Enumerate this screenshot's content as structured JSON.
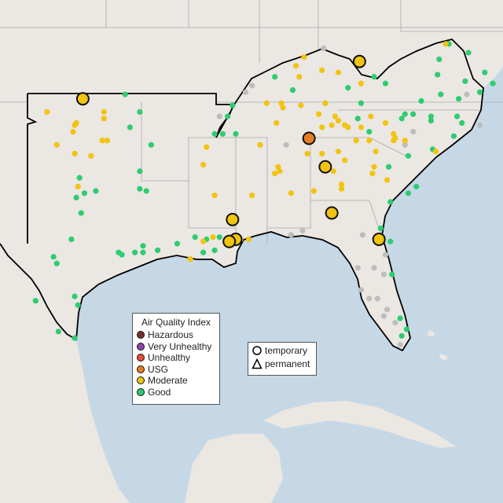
{
  "legend": {
    "title": "Air Quality Index",
    "categories": [
      {
        "label": "Hazardous",
        "color": "#7e2d2d"
      },
      {
        "label": "Very Unhealthy",
        "color": "#8e44ad"
      },
      {
        "label": "Unhealthy",
        "color": "#e74c3c"
      },
      {
        "label": "USG",
        "color": "#e67e22"
      },
      {
        "label": "Moderate",
        "color": "#f1c40f"
      },
      {
        "label": "Good",
        "color": "#2ecc71"
      }
    ],
    "no_data_color": "#bdbdbd",
    "monitor_types": [
      {
        "label": "temporary",
        "icon": "circle-icon"
      },
      {
        "label": "permanent",
        "icon": "triangle-icon"
      }
    ]
  },
  "colors": {
    "sea": "#c6d8e6",
    "land": "#ebe7e3",
    "border": "#000000",
    "state_lines": "#a9a9a9"
  },
  "monitors": {
    "temporary": [
      {
        "lon": -99.6,
        "lat": 36.8,
        "aqi": "Moderate"
      },
      {
        "lon": -82.6,
        "lat": 38.5,
        "aqi": "Moderate"
      },
      {
        "lon": -85.7,
        "lat": 35.0,
        "aqi": "USG"
      },
      {
        "lon": -84.7,
        "lat": 33.7,
        "aqi": "Moderate"
      },
      {
        "lon": -84.3,
        "lat": 31.6,
        "aqi": "Moderate"
      },
      {
        "lon": -90.4,
        "lat": 31.3,
        "aqi": "Moderate"
      },
      {
        "lon": -90.2,
        "lat": 30.4,
        "aqi": "Moderate"
      },
      {
        "lon": -90.6,
        "lat": 30.3,
        "aqi": "Moderate"
      },
      {
        "lon": -81.4,
        "lat": 30.4,
        "aqi": "Moderate"
      }
    ],
    "permanent_good": [
      [
        -97.0,
        37.0
      ],
      [
        -96.1,
        36.2
      ],
      [
        -96.7,
        35.5
      ],
      [
        -95.4,
        34.7
      ],
      [
        -96.1,
        33.5
      ],
      [
        -99.8,
        33.2
      ],
      [
        -98.8,
        32.6
      ],
      [
        -99.5,
        32.5
      ],
      [
        -100.0,
        32.3
      ],
      [
        -96.1,
        32.7
      ],
      [
        -95.7,
        32.6
      ],
      [
        -99.7,
        31.6
      ],
      [
        -100.3,
        30.4
      ],
      [
        -101.4,
        29.6
      ],
      [
        -101.2,
        29.3
      ],
      [
        -97.4,
        29.8
      ],
      [
        -97.2,
        29.7
      ],
      [
        -96.4,
        29.8
      ],
      [
        -95.9,
        30.1
      ],
      [
        -95.9,
        29.8
      ],
      [
        -95.0,
        29.9
      ],
      [
        -93.8,
        30.2
      ],
      [
        -92.7,
        30.5
      ],
      [
        -92.2,
        29.8
      ],
      [
        -91.5,
        29.9
      ],
      [
        -92.0,
        30.4
      ],
      [
        -91.2,
        30.5
      ],
      [
        -102.5,
        27.6
      ],
      [
        -100.1,
        27.8
      ],
      [
        -99.9,
        27.4
      ],
      [
        -101.1,
        26.2
      ],
      [
        -100.1,
        25.9
      ],
      [
        -91.5,
        35.2
      ],
      [
        -91.0,
        35.2
      ],
      [
        -90.7,
        36.0
      ],
      [
        -90.4,
        36.5
      ],
      [
        -90.2,
        35.2
      ],
      [
        -87.8,
        37.8
      ],
      [
        -86.7,
        37.2
      ],
      [
        -84.7,
        36.6
      ],
      [
        -82.5,
        36.6
      ],
      [
        -83.3,
        37.3
      ],
      [
        -81.7,
        37.8
      ],
      [
        -81.0,
        37.5
      ],
      [
        -79.8,
        36.1
      ],
      [
        -79.3,
        36.1
      ],
      [
        -80.0,
        35.9
      ],
      [
        -78.2,
        36.0
      ],
      [
        -78.2,
        35.8
      ],
      [
        -76.6,
        36.0
      ],
      [
        -76.3,
        35.7
      ],
      [
        -76.5,
        36.8
      ],
      [
        -77.6,
        37.0
      ],
      [
        -77.8,
        37.9
      ],
      [
        -77.7,
        38.6
      ],
      [
        -76.1,
        37.6
      ],
      [
        -75.2,
        37.1
      ],
      [
        -74.9,
        38.0
      ],
      [
        -75.9,
        38.9
      ],
      [
        -77.1,
        39.3
      ],
      [
        -74.4,
        37.5
      ],
      [
        -78.8,
        36.7
      ],
      [
        -82.0,
        35.3
      ],
      [
        -82.7,
        35.9
      ],
      [
        -78.1,
        34.5
      ],
      [
        -76.8,
        35.1
      ],
      [
        -79.6,
        34.2
      ],
      [
        -80.8,
        33.7
      ],
      [
        -79.1,
        32.8
      ],
      [
        -79.6,
        32.5
      ],
      [
        -80.7,
        32.1
      ],
      [
        -81.3,
        30.9
      ],
      [
        -79.7,
        26.3
      ],
      [
        -80.0,
        26.0
      ],
      [
        -80.1,
        26.8
      ],
      [
        -80.7,
        30.3
      ],
      [
        -80.6,
        28.8
      ]
    ],
    "permanent_moderate": [
      [
        -101.8,
        36.2
      ],
      [
        -100.1,
        35.6
      ],
      [
        -100.2,
        35.3
      ],
      [
        -100.0,
        35.7
      ],
      [
        -98.3,
        36.2
      ],
      [
        -98.3,
        35.9
      ],
      [
        -98.4,
        34.9
      ],
      [
        -101.2,
        34.7
      ],
      [
        -100.1,
        34.3
      ],
      [
        -99.1,
        34.2
      ],
      [
        -99.9,
        32.8
      ],
      [
        -98.1,
        34.9
      ],
      [
        -92.2,
        33.8
      ],
      [
        -92.0,
        34.6
      ],
      [
        -91.5,
        32.4
      ],
      [
        -89.2,
        32.4
      ],
      [
        -89.9,
        30.4
      ],
      [
        -89.4,
        30.4
      ],
      [
        -92.2,
        30.3
      ],
      [
        -91.6,
        30.5
      ],
      [
        -93.0,
        29.5
      ],
      [
        -86.5,
        38.3
      ],
      [
        -86.0,
        38.7
      ],
      [
        -86.3,
        37.8
      ],
      [
        -84.9,
        38.1
      ],
      [
        -83.9,
        38.0
      ],
      [
        -82.5,
        37.5
      ],
      [
        -88.3,
        36.6
      ],
      [
        -87.3,
        36.4
      ],
      [
        -87.7,
        35.7
      ],
      [
        -87.4,
        36.6
      ],
      [
        -86.2,
        36.5
      ],
      [
        -84.7,
        36.6
      ],
      [
        -85.1,
        36.1
      ],
      [
        -84.9,
        35.5
      ],
      [
        -84.1,
        36.0
      ],
      [
        -84.3,
        35.6
      ],
      [
        -83.9,
        35.8
      ],
      [
        -83.3,
        35.5
      ],
      [
        -81.9,
        36.0
      ],
      [
        -81.0,
        35.7
      ],
      [
        -80.5,
        35.2
      ],
      [
        -80.4,
        35.0
      ],
      [
        -80.5,
        34.9
      ],
      [
        -82.0,
        34.9
      ],
      [
        -82.8,
        34.9
      ],
      [
        -83.5,
        35.6
      ],
      [
        -82.5,
        35.5
      ],
      [
        -88.7,
        34.7
      ],
      [
        -87.6,
        33.7
      ],
      [
        -87.5,
        33.5
      ],
      [
        -87.8,
        33.4
      ],
      [
        -86.8,
        32.5
      ],
      [
        -85.4,
        32.6
      ],
      [
        -85.8,
        34.3
      ],
      [
        -84.9,
        34.3
      ],
      [
        -83.9,
        34.4
      ],
      [
        -83.5,
        34.0
      ],
      [
        -81.7,
        33.7
      ],
      [
        -81.8,
        33.4
      ],
      [
        -83.7,
        32.9
      ],
      [
        -83.7,
        32.7
      ],
      [
        -84.2,
        33.5
      ],
      [
        -81.6,
        34.4
      ],
      [
        -80.9,
        33.1
      ],
      [
        -79.8,
        34.9
      ],
      [
        -77.9,
        34.4
      ],
      [
        -77.3,
        39.3
      ]
    ],
    "permanent_no_data": [
      [
        -84.8,
        39.1
      ],
      [
        -89.6,
        37.1
      ],
      [
        -89.2,
        37.4
      ],
      [
        -87.1,
        34.7
      ],
      [
        -86.1,
        30.8
      ],
      [
        -86.8,
        30.6
      ],
      [
        -82.4,
        30.6
      ],
      [
        -82.7,
        29.1
      ],
      [
        -82.5,
        28.1
      ],
      [
        -82.0,
        27.7
      ],
      [
        -81.0,
        29.7
      ],
      [
        -81.7,
        29.1
      ],
      [
        -81.1,
        28.8
      ],
      [
        -81.5,
        27.7
      ],
      [
        -80.9,
        27.2
      ],
      [
        -81.1,
        26.9
      ],
      [
        -80.4,
        26.6
      ],
      [
        -80.1,
        25.6
      ],
      [
        -79.3,
        35.3
      ],
      [
        -79.8,
        34.7
      ],
      [
        -76.0,
        37.0
      ],
      [
        -75.2,
        35.6
      ],
      [
        -91.2,
        36.0
      ]
    ]
  }
}
